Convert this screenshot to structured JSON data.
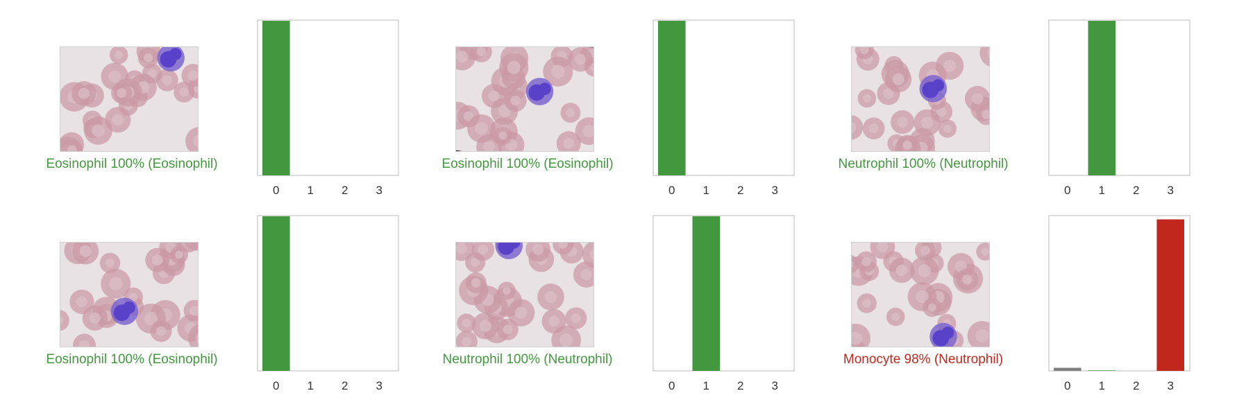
{
  "colors": {
    "correct": "#43983f",
    "wrong": "#c0281e",
    "other": "#808080",
    "axis": "#d0d0d0",
    "smear_bg": "#e9e2e5",
    "rbc": "#c99aa6",
    "nucleus": "#5a42c8"
  },
  "panels": [
    {
      "caption": "Eosinophil 100% (Eosinophil)",
      "correct": true,
      "thumbnail_icon": "blood-smear-image",
      "chart_data": {
        "type": "bar",
        "categories": [
          "0",
          "1",
          "2",
          "3"
        ],
        "values": [
          1.0,
          0.0,
          0.0,
          0.0
        ],
        "predicted": 0,
        "true_label": 0,
        "ylim": [
          0,
          1
        ]
      }
    },
    {
      "caption": "Eosinophil 100% (Eosinophil)",
      "correct": true,
      "thumbnail_icon": "blood-smear-image",
      "chart_data": {
        "type": "bar",
        "categories": [
          "0",
          "1",
          "2",
          "3"
        ],
        "values": [
          1.0,
          0.0,
          0.0,
          0.0
        ],
        "predicted": 0,
        "true_label": 0,
        "ylim": [
          0,
          1
        ]
      }
    },
    {
      "caption": "Neutrophil 100% (Neutrophil)",
      "correct": true,
      "thumbnail_icon": "blood-smear-image",
      "chart_data": {
        "type": "bar",
        "categories": [
          "0",
          "1",
          "2",
          "3"
        ],
        "values": [
          0.0,
          1.0,
          0.0,
          0.0
        ],
        "predicted": 1,
        "true_label": 1,
        "ylim": [
          0,
          1
        ]
      }
    },
    {
      "caption": "Eosinophil 100% (Eosinophil)",
      "correct": true,
      "thumbnail_icon": "blood-smear-image",
      "chart_data": {
        "type": "bar",
        "categories": [
          "0",
          "1",
          "2",
          "3"
        ],
        "values": [
          1.0,
          0.0,
          0.0,
          0.0
        ],
        "predicted": 0,
        "true_label": 0,
        "ylim": [
          0,
          1
        ]
      }
    },
    {
      "caption": "Neutrophil 100% (Neutrophil)",
      "correct": true,
      "thumbnail_icon": "blood-smear-image",
      "chart_data": {
        "type": "bar",
        "categories": [
          "0",
          "1",
          "2",
          "3"
        ],
        "values": [
          0.0,
          1.0,
          0.0,
          0.0
        ],
        "predicted": 1,
        "true_label": 1,
        "ylim": [
          0,
          1
        ]
      }
    },
    {
      "caption": "Monocyte 98% (Neutrophil)",
      "correct": false,
      "thumbnail_icon": "blood-smear-image",
      "chart_data": {
        "type": "bar",
        "categories": [
          "0",
          "1",
          "2",
          "3"
        ],
        "values": [
          0.02,
          0.003,
          0.0,
          0.98
        ],
        "predicted": 3,
        "true_label": 1,
        "ylim": [
          0,
          1
        ]
      }
    }
  ]
}
